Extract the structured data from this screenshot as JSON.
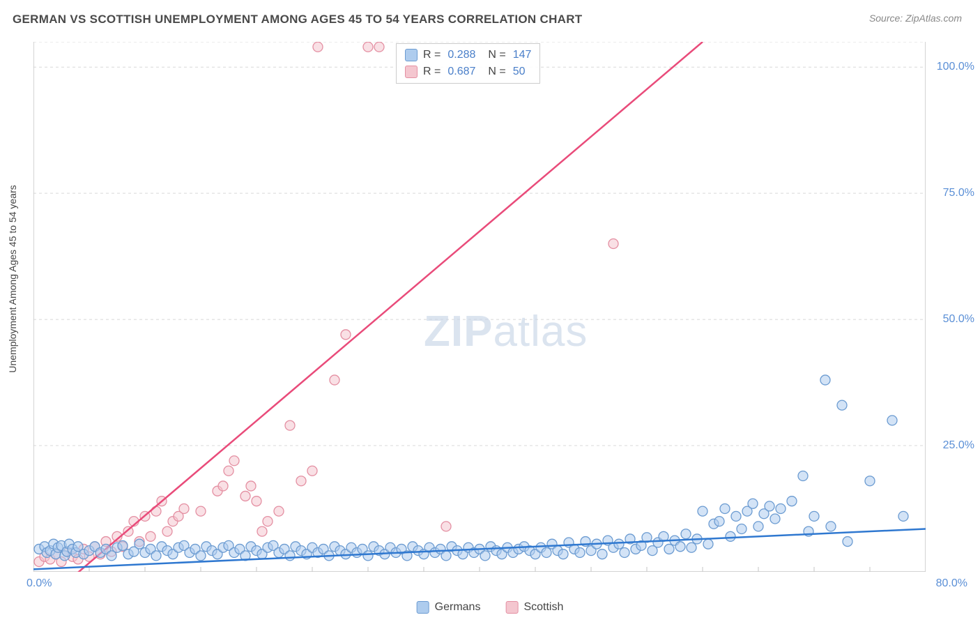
{
  "header": {
    "title": "GERMAN VS SCOTTISH UNEMPLOYMENT AMONG AGES 45 TO 54 YEARS CORRELATION CHART",
    "source": "Source: ZipAtlas.com"
  },
  "watermark": {
    "zip": "ZIP",
    "atlas": "atlas"
  },
  "chart": {
    "type": "scatter",
    "y_axis_label": "Unemployment Among Ages 45 to 54 years",
    "xlim": [
      0,
      80
    ],
    "ylim": [
      0,
      105
    ],
    "y_ticks": [
      25.0,
      50.0,
      75.0,
      100.0
    ],
    "y_tick_labels": [
      "25.0%",
      "50.0%",
      "75.0%",
      "100.0%"
    ],
    "x_tick_left": "0.0%",
    "x_tick_right": "80.0%",
    "x_minor_step": 5,
    "background_color": "#ffffff",
    "grid_color": "#d8d8d8",
    "axis_color": "#c5c5c5",
    "series": {
      "germans": {
        "label": "Germans",
        "fill": "#aeccee",
        "stroke": "#6b9bd1",
        "line_color": "#2f78d0",
        "r_value": "0.288",
        "n_value": "147",
        "regression": {
          "x1": 0,
          "y1": 0.5,
          "x2": 80,
          "y2": 8.5
        },
        "points": [
          [
            0.5,
            4.5
          ],
          [
            1,
            5
          ],
          [
            1.2,
            3.8
          ],
          [
            1.5,
            4.2
          ],
          [
            1.8,
            5.5
          ],
          [
            2,
            3.5
          ],
          [
            2.2,
            4.8
          ],
          [
            2.5,
            5.2
          ],
          [
            2.8,
            3.2
          ],
          [
            3,
            4
          ],
          [
            3.2,
            5.5
          ],
          [
            3.5,
            4.5
          ],
          [
            3.8,
            3.8
          ],
          [
            4,
            5
          ],
          [
            4.5,
            3.5
          ],
          [
            5,
            4.2
          ],
          [
            5.5,
            5
          ],
          [
            6,
            3.8
          ],
          [
            6.5,
            4.5
          ],
          [
            7,
            3.2
          ],
          [
            7.5,
            4.8
          ],
          [
            8,
            5.2
          ],
          [
            8.5,
            3.5
          ],
          [
            9,
            4
          ],
          [
            9.5,
            5.5
          ],
          [
            10,
            3.8
          ],
          [
            10.5,
            4.5
          ],
          [
            11,
            3.2
          ],
          [
            11.5,
            5
          ],
          [
            12,
            4.2
          ],
          [
            12.5,
            3.5
          ],
          [
            13,
            4.8
          ],
          [
            13.5,
            5.2
          ],
          [
            14,
            3.8
          ],
          [
            14.5,
            4.5
          ],
          [
            15,
            3.2
          ],
          [
            15.5,
            5
          ],
          [
            16,
            4.2
          ],
          [
            16.5,
            3.5
          ],
          [
            17,
            4.8
          ],
          [
            17.5,
            5.2
          ],
          [
            18,
            3.8
          ],
          [
            18.5,
            4.5
          ],
          [
            19,
            3.2
          ],
          [
            19.5,
            5
          ],
          [
            20,
            4.2
          ],
          [
            20.5,
            3.5
          ],
          [
            21,
            4.8
          ],
          [
            21.5,
            5.2
          ],
          [
            22,
            3.8
          ],
          [
            22.5,
            4.5
          ],
          [
            23,
            3.2
          ],
          [
            23.5,
            5
          ],
          [
            24,
            4.2
          ],
          [
            24.5,
            3.5
          ],
          [
            25,
            4.8
          ],
          [
            25.5,
            3.8
          ],
          [
            26,
            4.5
          ],
          [
            26.5,
            3.2
          ],
          [
            27,
            5
          ],
          [
            27.5,
            4.2
          ],
          [
            28,
            3.5
          ],
          [
            28.5,
            4.8
          ],
          [
            29,
            3.8
          ],
          [
            29.5,
            4.5
          ],
          [
            30,
            3.2
          ],
          [
            30.5,
            5
          ],
          [
            31,
            4.2
          ],
          [
            31.5,
            3.5
          ],
          [
            32,
            4.8
          ],
          [
            32.5,
            3.8
          ],
          [
            33,
            4.5
          ],
          [
            33.5,
            3.2
          ],
          [
            34,
            5
          ],
          [
            34.5,
            4.2
          ],
          [
            35,
            3.5
          ],
          [
            35.5,
            4.8
          ],
          [
            36,
            3.8
          ],
          [
            36.5,
            4.5
          ],
          [
            37,
            3.2
          ],
          [
            37.5,
            5
          ],
          [
            38,
            4.2
          ],
          [
            38.5,
            3.5
          ],
          [
            39,
            4.8
          ],
          [
            39.5,
            3.8
          ],
          [
            40,
            4.5
          ],
          [
            40.5,
            3.2
          ],
          [
            41,
            5
          ],
          [
            41.5,
            4.2
          ],
          [
            42,
            3.5
          ],
          [
            42.5,
            4.8
          ],
          [
            43,
            3.8
          ],
          [
            43.5,
            4.5
          ],
          [
            44,
            5
          ],
          [
            44.5,
            4.2
          ],
          [
            45,
            3.5
          ],
          [
            45.5,
            4.8
          ],
          [
            46,
            3.8
          ],
          [
            46.5,
            5.5
          ],
          [
            47,
            4.2
          ],
          [
            47.5,
            3.5
          ],
          [
            48,
            5.8
          ],
          [
            48.5,
            4.5
          ],
          [
            49,
            3.8
          ],
          [
            49.5,
            6
          ],
          [
            50,
            4.2
          ],
          [
            50.5,
            5.5
          ],
          [
            51,
            3.5
          ],
          [
            51.5,
            6.2
          ],
          [
            52,
            4.8
          ],
          [
            52.5,
            5.5
          ],
          [
            53,
            3.8
          ],
          [
            53.5,
            6.5
          ],
          [
            54,
            4.5
          ],
          [
            54.5,
            5.2
          ],
          [
            55,
            6.8
          ],
          [
            55.5,
            4.2
          ],
          [
            56,
            5.8
          ],
          [
            56.5,
            7
          ],
          [
            57,
            4.5
          ],
          [
            57.5,
            6.2
          ],
          [
            58,
            5
          ],
          [
            58.5,
            7.5
          ],
          [
            59,
            4.8
          ],
          [
            59.5,
            6.5
          ],
          [
            60,
            12
          ],
          [
            60.5,
            5.5
          ],
          [
            61,
            9.5
          ],
          [
            61.5,
            10
          ],
          [
            62,
            12.5
          ],
          [
            62.5,
            7
          ],
          [
            63,
            11
          ],
          [
            63.5,
            8.5
          ],
          [
            64,
            12
          ],
          [
            64.5,
            13.5
          ],
          [
            65,
            9
          ],
          [
            65.5,
            11.5
          ],
          [
            66,
            13
          ],
          [
            66.5,
            10.5
          ],
          [
            67,
            12.5
          ],
          [
            68,
            14
          ],
          [
            69,
            19
          ],
          [
            69.5,
            8
          ],
          [
            70,
            11
          ],
          [
            71,
            38
          ],
          [
            71.5,
            9
          ],
          [
            72.5,
            33
          ],
          [
            73,
            6
          ],
          [
            75,
            18
          ],
          [
            77,
            30
          ],
          [
            78,
            11
          ]
        ]
      },
      "scottish": {
        "label": "Scottish",
        "fill": "#f4c6cf",
        "stroke": "#e48fa2",
        "line_color": "#e94b7a",
        "r_value": "0.687",
        "n_value": "50",
        "regression": {
          "x1": 3,
          "y1": -2,
          "x2": 60,
          "y2": 105
        },
        "points": [
          [
            0.5,
            2
          ],
          [
            1,
            3
          ],
          [
            1.5,
            2.5
          ],
          [
            2,
            3.5
          ],
          [
            2.5,
            2
          ],
          [
            3,
            4
          ],
          [
            3.5,
            3
          ],
          [
            4,
            2.5
          ],
          [
            4.5,
            4.5
          ],
          [
            5,
            3
          ],
          [
            5.5,
            5
          ],
          [
            6,
            3.5
          ],
          [
            6.5,
            6
          ],
          [
            7,
            4
          ],
          [
            7.5,
            7
          ],
          [
            8,
            5
          ],
          [
            8.5,
            8
          ],
          [
            9,
            10
          ],
          [
            9.5,
            6
          ],
          [
            10,
            11
          ],
          [
            10.5,
            7
          ],
          [
            11,
            12
          ],
          [
            11.5,
            14
          ],
          [
            12,
            8
          ],
          [
            12.5,
            10
          ],
          [
            13,
            11
          ],
          [
            13.5,
            12.5
          ],
          [
            15,
            12
          ],
          [
            16.5,
            16
          ],
          [
            17,
            17
          ],
          [
            17.5,
            20
          ],
          [
            18,
            22
          ],
          [
            19,
            15
          ],
          [
            19.5,
            17
          ],
          [
            20,
            14
          ],
          [
            20.5,
            8
          ],
          [
            21,
            10
          ],
          [
            22,
            12
          ],
          [
            23,
            29
          ],
          [
            24,
            18
          ],
          [
            25,
            20
          ],
          [
            25.5,
            104
          ],
          [
            27,
            38
          ],
          [
            28,
            47
          ],
          [
            30,
            104
          ],
          [
            31,
            104
          ],
          [
            37,
            9
          ],
          [
            52,
            65
          ]
        ]
      }
    }
  },
  "bottom_legend": {
    "items": [
      {
        "label": "Germans",
        "fill": "#aeccee",
        "stroke": "#6b9bd1"
      },
      {
        "label": "Scottish",
        "fill": "#f4c6cf",
        "stroke": "#e48fa2"
      }
    ]
  }
}
